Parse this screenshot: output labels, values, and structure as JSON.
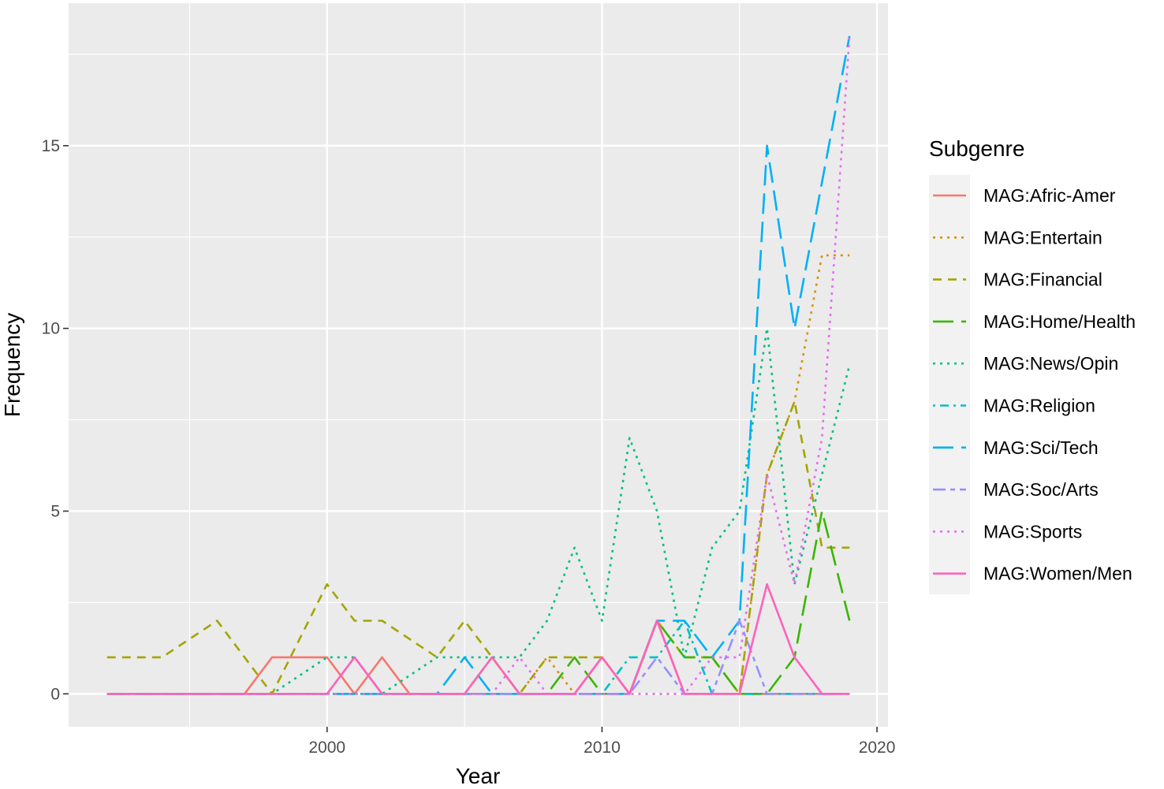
{
  "chart_data": {
    "type": "line",
    "title": "",
    "xlabel": "Year",
    "ylabel": "Frequency",
    "xlim": [
      1990.6,
      2020.4
    ],
    "ylim": [
      -0.9,
      18.9
    ],
    "x_major_ticks": [
      2000,
      2010,
      2020
    ],
    "x_minor_ticks": [
      1995,
      2005,
      2015
    ],
    "y_major_ticks": [
      0,
      5,
      10,
      15
    ],
    "y_minor_ticks": [
      2.5,
      7.5,
      12.5,
      17.5
    ],
    "grid": true,
    "legend": {
      "title": "Subgenre",
      "position": "right"
    },
    "x": [
      1992,
      1993,
      1994,
      1995,
      1996,
      1997,
      1998,
      1999,
      2000,
      2001,
      2002,
      2003,
      2004,
      2005,
      2006,
      2007,
      2008,
      2009,
      2010,
      2011,
      2012,
      2013,
      2014,
      2015,
      2016,
      2017,
      2018,
      2019
    ],
    "series": [
      {
        "name": "MAG:Afric-Amer",
        "color": "#F8766D",
        "dash": "solid",
        "values": [
          0,
          0,
          0,
          0,
          0,
          0,
          1,
          1,
          1,
          0,
          1,
          0,
          0,
          0,
          0,
          0,
          0,
          0,
          1,
          0,
          2,
          0,
          0,
          0,
          0,
          0,
          0,
          0
        ]
      },
      {
        "name": "MAG:Entertain",
        "color": "#D89000",
        "dash": "dotted",
        "values": [
          0,
          0,
          0,
          0,
          0,
          0,
          0,
          0,
          0,
          0,
          0,
          0,
          0,
          0,
          0,
          0,
          1,
          0,
          0,
          0,
          0,
          0,
          0,
          0,
          6,
          8,
          12,
          12
        ]
      },
      {
        "name": "MAG:Financial",
        "color": "#A3A500",
        "dash": "dashed",
        "values": [
          1,
          1,
          1,
          1.5,
          2,
          1,
          0,
          1.5,
          3,
          2,
          2,
          1.5,
          1,
          2,
          1,
          0,
          1,
          1,
          1,
          0,
          2,
          1,
          1,
          0,
          6,
          8,
          4,
          4
        ]
      },
      {
        "name": "MAG:Home/Health",
        "color": "#39B600",
        "dash": "longdash",
        "values": [
          0,
          0,
          0,
          0,
          0,
          0,
          0,
          0,
          0,
          0,
          0,
          0,
          0,
          0,
          1,
          0,
          0,
          1,
          0,
          0,
          2,
          1,
          1,
          0,
          0,
          1,
          5,
          2
        ]
      },
      {
        "name": "MAG:News/Opin",
        "color": "#00BF7D",
        "dash": "dotted",
        "values": [
          0,
          0,
          0,
          0,
          0,
          0,
          0,
          0.5,
          1,
          1,
          0,
          0.5,
          1,
          1,
          1,
          1,
          2,
          4,
          2,
          7,
          5,
          1,
          4,
          5,
          10,
          3,
          6,
          9
        ]
      },
      {
        "name": "MAG:Religion",
        "color": "#00BFC4",
        "dash": "dotdash",
        "values": [
          0,
          0,
          0,
          0,
          0,
          0,
          0,
          0,
          0,
          0,
          0,
          0,
          0,
          0,
          0,
          0,
          0,
          0,
          0,
          1,
          1,
          2,
          0,
          0,
          0,
          0,
          0,
          0
        ]
      },
      {
        "name": "MAG:Sci/Tech",
        "color": "#00B0F6",
        "dash": "longdash",
        "values": [
          0,
          0,
          0,
          0,
          0,
          0,
          0,
          0,
          0,
          0,
          0,
          0,
          0,
          1,
          0,
          0,
          0,
          0,
          0,
          0,
          2,
          2,
          1,
          2,
          15,
          10,
          14,
          18
        ]
      },
      {
        "name": "MAG:Soc/Arts",
        "color": "#9590FF",
        "dash": "twodash",
        "values": [
          0,
          0,
          0,
          0,
          0,
          0,
          0,
          0,
          0,
          1,
          0,
          0,
          0,
          0,
          0,
          0,
          0,
          0,
          0,
          0,
          1,
          0,
          0,
          2,
          0,
          0,
          0,
          0
        ]
      },
      {
        "name": "MAG:Sports",
        "color": "#E76BF3",
        "dash": "dotted",
        "values": [
          0,
          0,
          0,
          0,
          0,
          0,
          0,
          0,
          0,
          0,
          0,
          0,
          0,
          0,
          0,
          1,
          0,
          0,
          0,
          0,
          0,
          0,
          1,
          1,
          6,
          3,
          7,
          18
        ]
      },
      {
        "name": "MAG:Women/Men",
        "color": "#FF62BC",
        "dash": "solid",
        "values": [
          0,
          0,
          0,
          0,
          0,
          0,
          0,
          0,
          0,
          1,
          0,
          0,
          0,
          0,
          1,
          0,
          0,
          0,
          1,
          0,
          2,
          0,
          0,
          0,
          3,
          1,
          0,
          0
        ]
      }
    ]
  }
}
